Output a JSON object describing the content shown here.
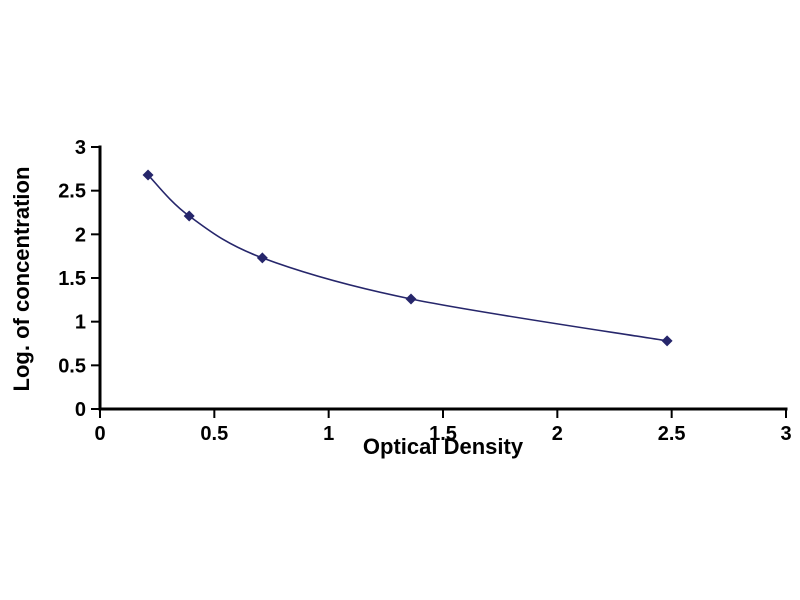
{
  "chart_data": {
    "type": "scatter",
    "x": [
      0.21,
      0.39,
      0.71,
      1.36,
      2.48
    ],
    "y": [
      2.68,
      2.21,
      1.73,
      1.26,
      0.78
    ],
    "title": "",
    "xlabel": "Optical Density",
    "ylabel": "Log. of concentration",
    "xlim": [
      0,
      3
    ],
    "ylim": [
      0,
      3
    ],
    "xticks": [
      0,
      0.5,
      1,
      1.5,
      2,
      2.5,
      3
    ],
    "yticks": [
      0,
      0.5,
      1,
      1.5,
      2,
      2.5,
      3
    ],
    "grid": false,
    "legend": null,
    "line_color": "#26266b",
    "marker": "diamond",
    "marker_color": "#26266b",
    "axis_color": "#000000",
    "background_color": "#ffffff"
  }
}
